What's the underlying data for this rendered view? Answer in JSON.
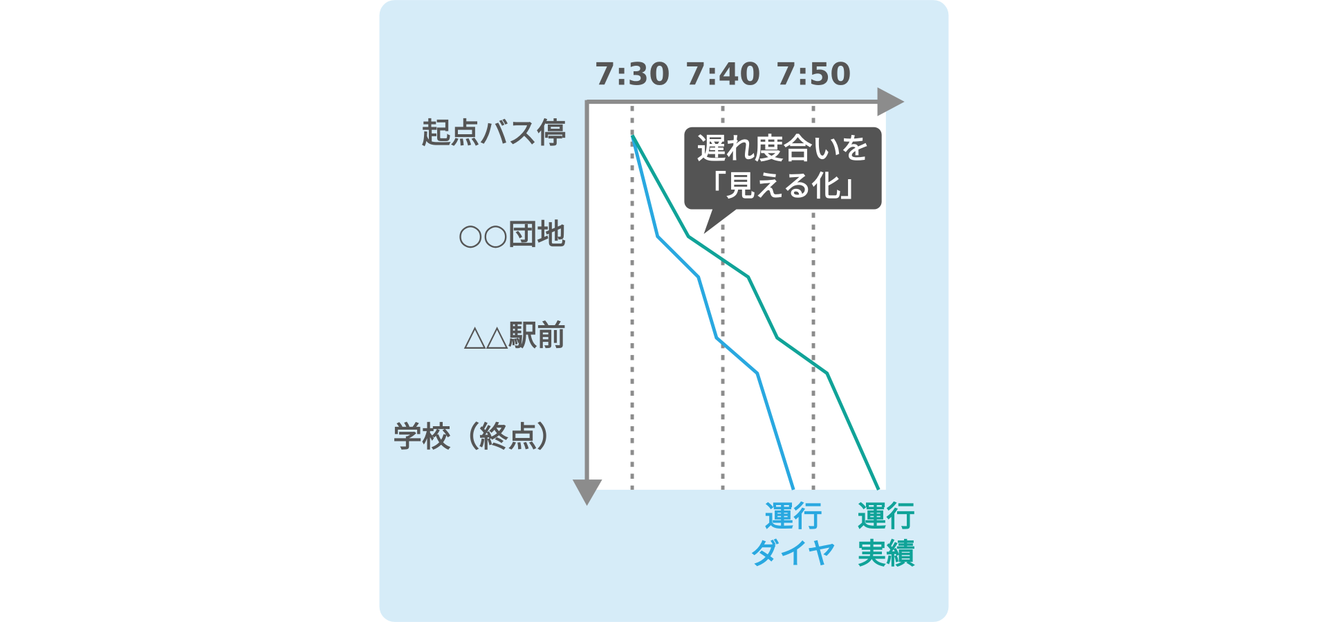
{
  "chart_data": {
    "type": "line",
    "annotation": "遅れ度合いを\n「見える化」",
    "xlim": [
      445,
      478
    ],
    "xticks": [
      {
        "value": 450,
        "label": "7:30"
      },
      {
        "value": 460,
        "label": "7:40"
      },
      {
        "value": 470,
        "label": "7:50"
      }
    ],
    "ylim": [
      -0.33,
      3.5
    ],
    "yticks": [
      {
        "value": 0,
        "label": "起点バス停"
      },
      {
        "value": 1,
        "label": "○○団地"
      },
      {
        "value": 2,
        "label": "△△駅前"
      },
      {
        "value": 3,
        "label": "学校（終点）"
      }
    ],
    "grid": true,
    "series": [
      {
        "name": "運行\nダイヤ",
        "color": "#29a8e0",
        "x": [
          450,
          452.8,
          457.3,
          459.3,
          463.8,
          467.8
        ],
        "values": [
          0,
          1,
          1.4,
          2,
          2.35,
          3.5
        ]
      },
      {
        "name": "運行\n実績",
        "color": "#10a398",
        "x": [
          450,
          456.2,
          462.8,
          466,
          471.5,
          477.2
        ],
        "values": [
          0,
          1,
          1.4,
          2,
          2.35,
          3.5
        ]
      }
    ]
  }
}
